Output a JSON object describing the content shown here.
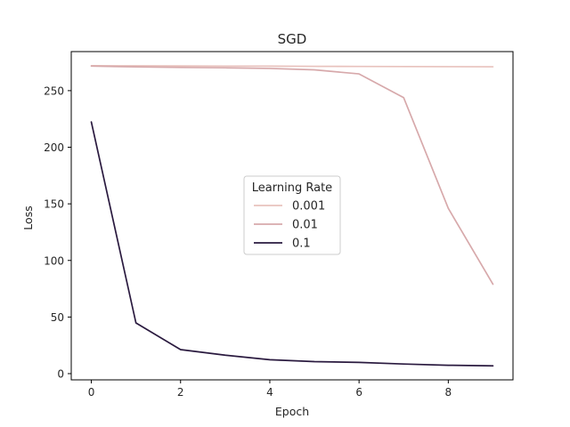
{
  "chart_data": {
    "type": "line",
    "title": "SGD",
    "xlabel": "Epoch",
    "ylabel": "Loss",
    "xlim": [
      -0.45,
      9.45
    ],
    "ylim": [
      -5.5,
      284.5
    ],
    "xticks": [
      0,
      2,
      4,
      6,
      8
    ],
    "yticks": [
      0,
      50,
      100,
      150,
      200,
      250
    ],
    "grid": false,
    "legend": {
      "title": "Learning Rate",
      "placement": "center"
    },
    "x": [
      0,
      1,
      2,
      3,
      4,
      5,
      6,
      7,
      8,
      9
    ],
    "series": [
      {
        "name": "0.001",
        "color": "#e8c2bd",
        "values": [
          272.0,
          271.9,
          271.8,
          271.7,
          271.6,
          271.5,
          271.4,
          271.3,
          271.2,
          271.1
        ]
      },
      {
        "name": "0.01",
        "color": "#d7a9ab",
        "values": [
          271.7,
          271.0,
          270.5,
          270.2,
          269.6,
          268.4,
          264.8,
          243.8,
          146.0,
          79.0
        ]
      },
      {
        "name": "0.1",
        "color": "#2a1a3f",
        "values": [
          222.3,
          44.8,
          21.2,
          16.3,
          12.3,
          10.6,
          9.9,
          8.5,
          7.4,
          6.9
        ]
      }
    ]
  }
}
